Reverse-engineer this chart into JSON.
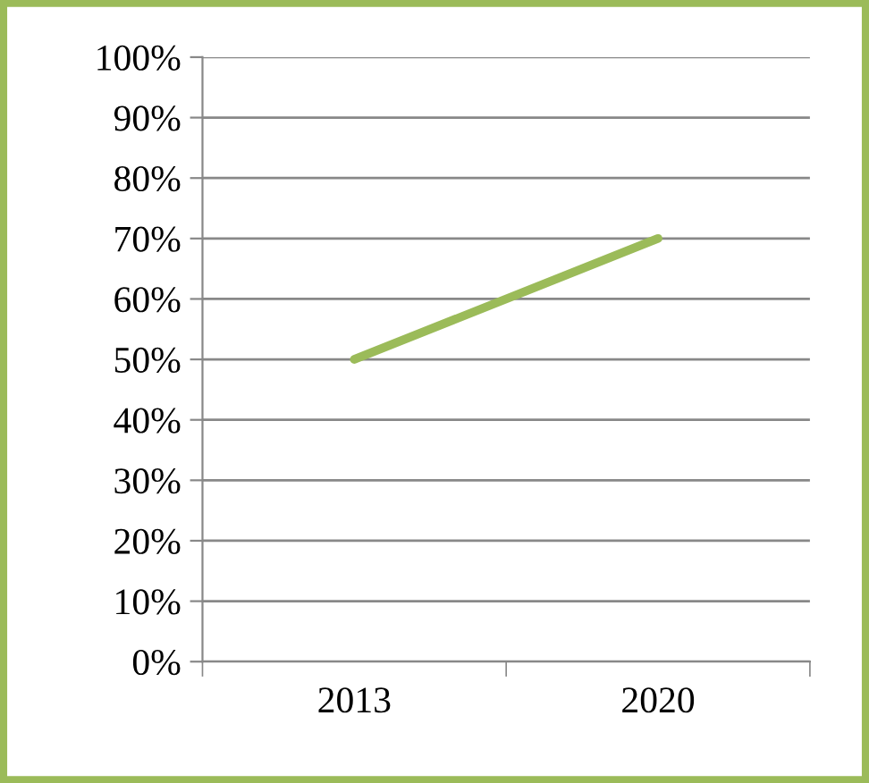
{
  "chart_data": {
    "type": "line",
    "categories": [
      "2013",
      "2020"
    ],
    "series": [
      {
        "color": "#9bbb59",
        "values": [
          50,
          70
        ]
      }
    ],
    "ylim": [
      0,
      100
    ],
    "yticks": [
      {
        "value": 0,
        "label": "0%"
      },
      {
        "value": 10,
        "label": "10%"
      },
      {
        "value": 20,
        "label": "20%"
      },
      {
        "value": 30,
        "label": "30%"
      },
      {
        "value": 40,
        "label": "40%"
      },
      {
        "value": 50,
        "label": "50%"
      },
      {
        "value": 60,
        "label": "60%"
      },
      {
        "value": 70,
        "label": "70%"
      },
      {
        "value": 80,
        "label": "80%"
      },
      {
        "value": 90,
        "label": "90%"
      },
      {
        "value": 100,
        "label": "100%"
      }
    ],
    "grid": "y",
    "legend": false,
    "marker": "none",
    "line_style": "solid"
  }
}
